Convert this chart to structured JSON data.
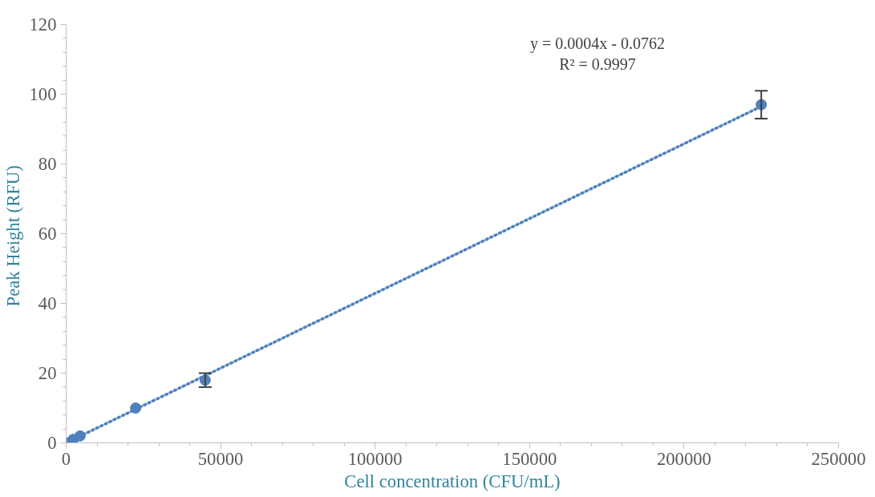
{
  "chart_data": {
    "type": "scatter",
    "xlabel": "Cell concentration (CFU/mL)",
    "ylabel": "Peak Height  (RFU)",
    "xlim": [
      0,
      250000
    ],
    "xticks": [
      0,
      50000,
      100000,
      150000,
      200000,
      250000
    ],
    "ylim": [
      0,
      120
    ],
    "yticks": [
      0,
      20,
      40,
      60,
      80,
      100,
      120
    ],
    "grid": false,
    "marker": "circle",
    "series": [
      {
        "color": "#4f81bd",
        "x": [
          0,
          2250,
          4500,
          22500,
          45000,
          225000
        ],
        "values": [
          0,
          1,
          2,
          10,
          18,
          97
        ],
        "errors": [
          null,
          null,
          null,
          null,
          2,
          4
        ]
      },
      {
        "type": "line",
        "color": "#4f81bd",
        "line_style": "dotted",
        "marker": "none",
        "x": [
          0,
          225000
        ],
        "values": [
          0,
          96.5
        ]
      }
    ],
    "annotations": [
      "y = 0.0004x - 0.0762",
      "R² = 0.9997"
    ]
  }
}
